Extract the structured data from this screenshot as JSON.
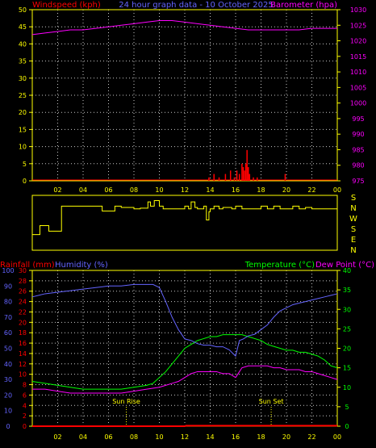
{
  "colors": {
    "background": "#000000",
    "frame": "#ffff00",
    "grid": "#c8c8c8",
    "wind": "#ff0000",
    "barometer": "#ff00ff",
    "rainfall": "#ff0000",
    "humidity": "#6464ff",
    "temperature": "#00ff00",
    "dewpoint": "#ff00ff",
    "direction": "#ffff00",
    "axis_text": "#ffff00",
    "sun_marker": "#ffff00"
  },
  "x_ticks": [
    "02",
    "04",
    "06",
    "08",
    "10",
    "12",
    "14",
    "16",
    "18",
    "20",
    "22",
    "00"
  ],
  "chart_data": [
    {
      "type": "line",
      "title": "24 hour graph data - 10 October 2025",
      "ylabel_left": "Windspeed (kph)",
      "ylabel_right": "Barometer (hpa)",
      "ylim_left": [
        0,
        50
      ],
      "ylim_right": [
        975,
        1030
      ],
      "yticks_left": [
        "0",
        "5",
        "10",
        "15",
        "20",
        "25",
        "30",
        "35",
        "40",
        "45",
        "50"
      ],
      "yticks_right": [
        "975",
        "980",
        "985",
        "990",
        "995",
        "1000",
        "1005",
        "1010",
        "1015",
        "1020",
        "1025",
        "1030"
      ],
      "grid": true,
      "series": [
        {
          "key": "barometer",
          "axis": "right",
          "x": [
            0,
            1,
            2,
            3,
            4,
            5,
            6,
            7,
            8,
            9,
            10,
            11,
            12,
            13,
            14,
            15,
            16,
            17,
            18,
            19,
            20,
            21,
            22,
            23,
            24
          ],
          "values": [
            1022.0,
            1022.5,
            1023.0,
            1023.5,
            1023.5,
            1024.0,
            1024.5,
            1025.0,
            1025.5,
            1026.0,
            1026.5,
            1026.5,
            1026.0,
            1025.5,
            1025.0,
            1024.5,
            1024.0,
            1023.5,
            1023.5,
            1023.5,
            1023.5,
            1023.5,
            1024.0,
            1024.0,
            1024.0
          ]
        },
        {
          "key": "wind",
          "axis": "left",
          "type": "bar",
          "x": [
            13.9,
            14.3,
            14.7,
            15.2,
            15.6,
            15.9,
            16.1,
            16.3,
            16.5,
            16.6,
            16.7,
            16.8,
            16.9,
            17.0,
            17.1,
            17.4,
            17.7,
            19.9
          ],
          "values": [
            1,
            2,
            1,
            2,
            3,
            1,
            3,
            2,
            5,
            4,
            3,
            5,
            9,
            4,
            2,
            1,
            1,
            2
          ]
        }
      ]
    },
    {
      "type": "line",
      "ylabels": [
        "N",
        "E",
        "S",
        "W",
        "N",
        "S"
      ],
      "direction_scale": [
        "S",
        "N",
        "W",
        "S",
        "E",
        "N"
      ],
      "x": [
        0,
        0.3,
        0.6,
        1.0,
        1.3,
        1.5,
        1.8,
        2.2,
        2.3,
        2.9,
        3.5,
        4.0,
        4.5,
        5.0,
        5.5,
        6.0,
        6.5,
        7.0,
        8.0,
        8.5,
        9.0,
        9.1,
        9.3,
        9.6,
        10.0,
        10.3,
        10.5,
        11.0,
        11.5,
        12.0,
        12.3,
        12.5,
        12.8,
        13.0,
        13.5,
        13.7,
        13.9,
        14.0,
        14.3,
        14.7,
        15.0,
        15.3,
        15.7,
        16.0,
        16.5,
        17.0,
        17.5,
        18.0,
        18.5,
        19.0,
        19.5,
        20.0,
        20.5,
        21.0,
        21.5,
        22.0,
        22.5,
        23.0,
        24.0
      ],
      "values": [
        265,
        265,
        200,
        200,
        240,
        240,
        240,
        240,
        60,
        60,
        60,
        60,
        60,
        60,
        95,
        95,
        60,
        70,
        80,
        75,
        75,
        30,
        60,
        20,
        60,
        80,
        80,
        80,
        80,
        60,
        80,
        30,
        70,
        80,
        60,
        160,
        100,
        80,
        60,
        80,
        70,
        70,
        80,
        60,
        80,
        80,
        80,
        60,
        80,
        60,
        80,
        80,
        60,
        80,
        70,
        80,
        80,
        80,
        80
      ]
    },
    {
      "type": "line",
      "ylabel_rainfall": "Rainfall (mm)",
      "ylabel_humidity": "Humidity (%)",
      "ylabel_temperature": "Temperature (°C)",
      "ylabel_dewpoint": "Dew Point (°C)",
      "ylim_rainfall": [
        0,
        30
      ],
      "ylim_humidity": [
        0,
        100
      ],
      "ylim_temperature": [
        0,
        40
      ],
      "yticks_humidity": [
        "0",
        "10",
        "20",
        "30",
        "40",
        "50",
        "60",
        "70",
        "80",
        "90",
        "100"
      ],
      "yticks_rainfall": [
        "0",
        "2",
        "4",
        "6",
        "8",
        "10",
        "12",
        "14",
        "16",
        "18",
        "20",
        "22",
        "24",
        "26",
        "28",
        "30"
      ],
      "yticks_temperature": [
        "0",
        "5",
        "10",
        "15",
        "20",
        "25",
        "30",
        "35",
        "40"
      ],
      "annotations": [
        {
          "label": "Sun Rise",
          "x": 7.4
        },
        {
          "label": "Sun Set",
          "x": 18.8
        }
      ],
      "series": [
        {
          "key": "humidity",
          "axis": "humidity",
          "x": [
            0,
            0.5,
            1,
            2,
            3,
            4,
            5,
            6,
            7,
            8,
            9,
            9.5,
            10,
            10.5,
            11,
            11.5,
            12,
            12.5,
            13,
            13.5,
            14,
            14.5,
            15,
            15.5,
            16,
            16.3,
            16.6,
            17,
            17.5,
            18,
            18.5,
            19,
            19.5,
            20,
            20.5,
            21,
            21.5,
            22,
            22.5,
            23,
            23.5,
            24
          ],
          "values": [
            83,
            84,
            85,
            86,
            87,
            88,
            89,
            90,
            90,
            91,
            91,
            91,
            89,
            80,
            70,
            62,
            56,
            55,
            53,
            52,
            52,
            51,
            51,
            49,
            45,
            55,
            56,
            58,
            59,
            62,
            65,
            70,
            74,
            76,
            78,
            79,
            80,
            81,
            82,
            83,
            84,
            85
          ]
        },
        {
          "key": "temperature",
          "axis": "temperature",
          "x": [
            0,
            1,
            2,
            3,
            4,
            5,
            6,
            7,
            8,
            9,
            9.5,
            10,
            10.5,
            11,
            11.5,
            12,
            12.5,
            13,
            13.5,
            14,
            14.5,
            15,
            15.5,
            16,
            16.5,
            17,
            17.5,
            18,
            18.5,
            19,
            19.5,
            20,
            20.5,
            21,
            21.5,
            22,
            22.5,
            23,
            23.5,
            24
          ],
          "values": [
            11.5,
            11,
            10.5,
            10,
            9.5,
            9.5,
            9.5,
            9.5,
            10,
            10.5,
            11,
            12.5,
            14,
            16,
            18,
            20,
            21,
            22,
            22.5,
            23,
            23,
            23.5,
            23.5,
            23.5,
            23.5,
            23,
            22.5,
            22,
            21,
            20.5,
            20,
            19.5,
            19.5,
            19,
            19,
            18.5,
            18,
            17,
            15.5,
            15
          ]
        },
        {
          "key": "dewpoint",
          "axis": "temperature",
          "x": [
            0,
            1,
            2,
            3,
            4,
            5,
            6,
            7,
            8,
            9,
            10,
            10.5,
            11,
            11.5,
            12,
            12.5,
            13,
            13.5,
            14,
            14.5,
            15,
            15.5,
            16,
            16.3,
            16.5,
            17,
            17.5,
            18,
            18.5,
            19,
            19.5,
            20,
            20.5,
            21,
            21.5,
            22,
            22.5,
            23,
            23.5,
            24
          ],
          "values": [
            9.5,
            9.5,
            9,
            8.5,
            8.5,
            8.5,
            8.5,
            8.5,
            9,
            9.5,
            10,
            10.5,
            11,
            11.5,
            12.5,
            13.5,
            14,
            14,
            14,
            14,
            13.5,
            13.5,
            12.5,
            14,
            15,
            15.5,
            15.5,
            15.5,
            15.5,
            15,
            15,
            14.5,
            14.5,
            14.5,
            14,
            14,
            13.5,
            13,
            12.5,
            12
          ]
        },
        {
          "key": "rainfall",
          "axis": "rainfall",
          "x": [
            0,
            12,
            12.1,
            24
          ],
          "values": [
            0,
            0,
            0.1,
            0.1
          ]
        }
      ]
    }
  ]
}
